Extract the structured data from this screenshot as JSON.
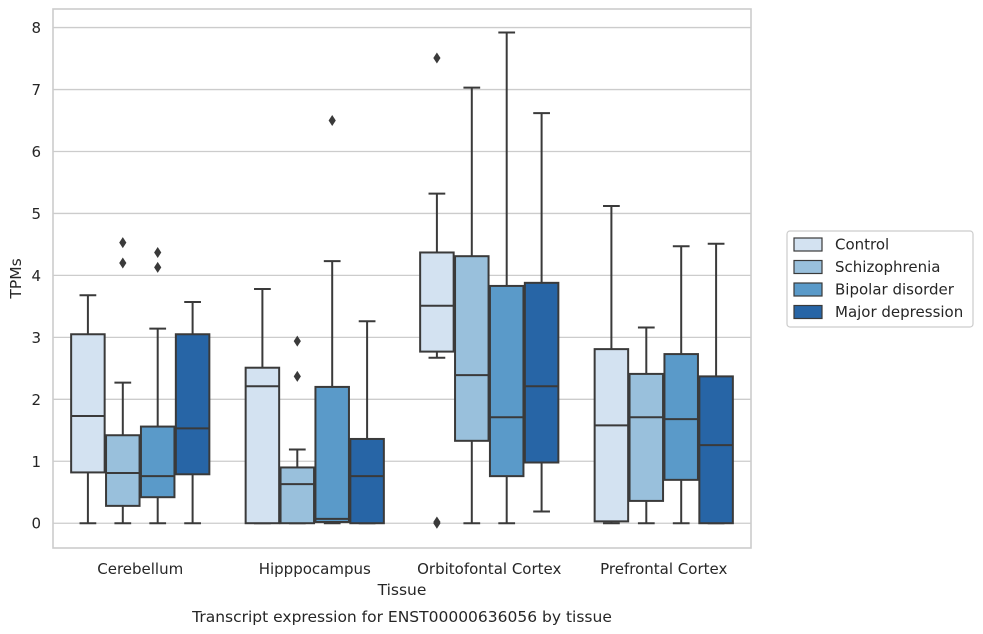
{
  "chart_data": {
    "type": "box",
    "caption": "Transcript expression for ENST00000636056 by tissue",
    "xlabel": "Tissue",
    "ylabel": "TPMs",
    "ylim": [
      -0.4,
      8.3
    ],
    "yticks": [
      "0",
      "1",
      "2",
      "3",
      "4",
      "5",
      "6",
      "7",
      "8"
    ],
    "grid": "horizontal",
    "legend_position": "right",
    "categories": [
      "Cerebellum",
      "Hipppocampus",
      "Orbitofontal Cortex",
      "Prefrontal Cortex"
    ],
    "series": [
      {
        "name": "Control",
        "color": "#d3e2f1",
        "boxes": [
          {
            "min": 0,
            "q1": 0.82,
            "median": 1.73,
            "q3": 3.05,
            "max": 3.68,
            "outliers": []
          },
          {
            "min": 0,
            "q1": 0,
            "median": 2.21,
            "q3": 2.51,
            "max": 3.78,
            "outliers": []
          },
          {
            "min": 2.67,
            "q1": 2.77,
            "median": 3.51,
            "q3": 4.37,
            "max": 5.32,
            "outliers": [
              7.51,
              0.02,
              0.0
            ]
          },
          {
            "min": 0,
            "q1": 0.03,
            "median": 1.58,
            "q3": 2.81,
            "max": 5.12,
            "outliers": []
          }
        ]
      },
      {
        "name": "Schizophrenia",
        "color": "#99c0dc",
        "boxes": [
          {
            "min": 0,
            "q1": 0.28,
            "median": 0.81,
            "q3": 1.42,
            "max": 2.27,
            "outliers": [
              4.53,
              4.2
            ]
          },
          {
            "min": 0,
            "q1": 0,
            "median": 0.63,
            "q3": 0.9,
            "max": 1.19,
            "outliers": [
              2.94,
              2.37
            ]
          },
          {
            "min": 0,
            "q1": 1.33,
            "median": 2.39,
            "q3": 4.31,
            "max": 7.03,
            "outliers": []
          },
          {
            "min": 0,
            "q1": 0.36,
            "median": 1.71,
            "q3": 2.41,
            "max": 3.16,
            "outliers": []
          }
        ]
      },
      {
        "name": "Bipolar disorder",
        "color": "#5a9ac9",
        "boxes": [
          {
            "min": 0,
            "q1": 0.42,
            "median": 0.76,
            "q3": 1.56,
            "max": 3.14,
            "outliers": [
              4.37,
              4.13
            ]
          },
          {
            "min": 0,
            "q1": 0.02,
            "median": 0.07,
            "q3": 2.2,
            "max": 4.23,
            "outliers": [
              6.5
            ]
          },
          {
            "min": 0,
            "q1": 0.76,
            "median": 1.71,
            "q3": 3.83,
            "max": 7.92,
            "outliers": []
          },
          {
            "min": 0,
            "q1": 0.7,
            "median": 1.68,
            "q3": 2.73,
            "max": 4.47,
            "outliers": []
          }
        ]
      },
      {
        "name": "Major depression",
        "color": "#2765a6",
        "boxes": [
          {
            "min": 0,
            "q1": 0.79,
            "median": 1.53,
            "q3": 3.05,
            "max": 3.57,
            "outliers": []
          },
          {
            "min": 0,
            "q1": 0,
            "median": 0.76,
            "q3": 1.36,
            "max": 3.26,
            "outliers": []
          },
          {
            "min": 0.19,
            "q1": 0.98,
            "median": 2.21,
            "q3": 3.88,
            "max": 6.62,
            "outliers": []
          },
          {
            "min": 0,
            "q1": 0,
            "median": 1.26,
            "q3": 2.37,
            "max": 4.51,
            "outliers": []
          }
        ]
      }
    ]
  }
}
